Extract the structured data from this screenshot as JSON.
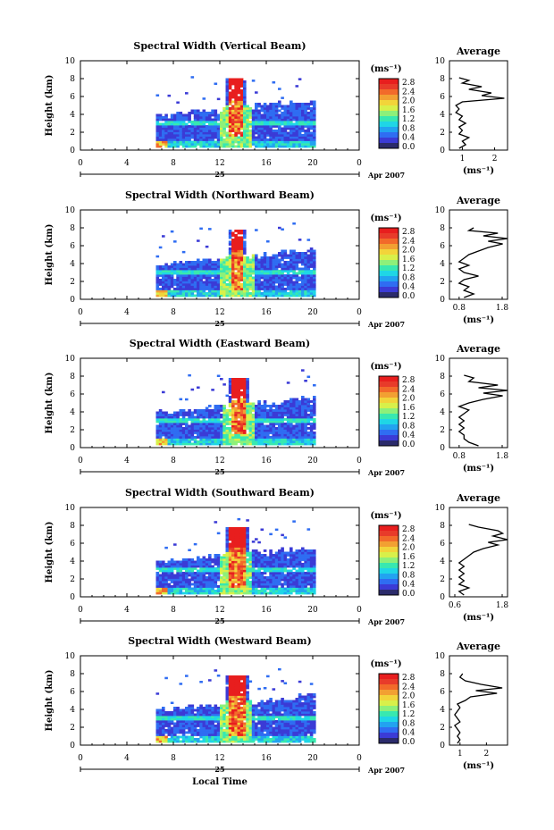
{
  "figure": {
    "x_axis_label": "Local Time",
    "date_label": "Apr 2007",
    "day_label": "25",
    "y_axis_label": "Height (km)",
    "unit_label": "(ms⁻¹)",
    "avg_title": "Average",
    "avg_unit": "(ms⁻¹)"
  },
  "colorbar": {
    "tick_labels": [
      "2.8",
      "2.4",
      "2.0",
      "1.6",
      "1.2",
      "0.8",
      "0.4",
      "0.0"
    ],
    "colors": [
      "#2b2b6b",
      "#3b3bd6",
      "#2f6df2",
      "#22a3f0",
      "#1fd6e6",
      "#38e8b0",
      "#8df07a",
      "#d8f04a",
      "#f2d43a",
      "#f2a032",
      "#f26a2a",
      "#e83b2a",
      "#e81e1e"
    ]
  },
  "chart_data": [
    {
      "type": "heatmap",
      "title": "Spectral Width (Vertical Beam)",
      "xlabel": "Local Time",
      "ylabel": "Height (km)",
      "xlim": [
        0,
        24
      ],
      "ylim": [
        0,
        10
      ],
      "x_ticks": [
        "0",
        "4",
        "8",
        "12",
        "16",
        "20",
        "0"
      ],
      "y_ticks": [
        "0",
        "2",
        "4",
        "6",
        "8",
        "10"
      ],
      "colorbar_range": [
        0.0,
        2.8
      ],
      "data_coverage_hours": [
        6.5,
        20.2
      ],
      "high_width_core": {
        "time_hours": [
          12.7,
          13.8
        ],
        "height_km": [
          1.5,
          8.0
        ]
      },
      "average_profile": {
        "xlim": [
          0.6,
          2.4
        ],
        "x_ticks": [
          "1",
          "2"
        ],
        "points": [
          [
            0.9,
            0.2
          ],
          [
            1.1,
            0.6
          ],
          [
            1.0,
            1.0
          ],
          [
            1.2,
            1.4
          ],
          [
            0.9,
            1.8
          ],
          [
            1.0,
            2.2
          ],
          [
            0.9,
            2.6
          ],
          [
            1.1,
            3.0
          ],
          [
            0.9,
            3.4
          ],
          [
            1.0,
            3.8
          ],
          [
            0.8,
            4.2
          ],
          [
            0.9,
            4.6
          ],
          [
            0.8,
            5.0
          ],
          [
            1.0,
            5.4
          ],
          [
            2.3,
            5.8
          ],
          [
            1.6,
            6.1
          ],
          [
            1.9,
            6.4
          ],
          [
            1.2,
            6.8
          ],
          [
            1.6,
            7.1
          ],
          [
            1.0,
            7.5
          ],
          [
            1.2,
            7.8
          ],
          [
            0.9,
            8.1
          ]
        ]
      }
    },
    {
      "type": "heatmap",
      "title": "Spectral Width (Northward Beam)",
      "xlabel": "Local Time",
      "ylabel": "Height (km)",
      "xlim": [
        0,
        24
      ],
      "ylim": [
        0,
        10
      ],
      "x_ticks": [
        "0",
        "4",
        "8",
        "12",
        "16",
        "20",
        "0"
      ],
      "y_ticks": [
        "0",
        "2",
        "4",
        "6",
        "8",
        "10"
      ],
      "colorbar_range": [
        0.0,
        2.8
      ],
      "data_coverage_hours": [
        6.5,
        20.2
      ],
      "high_width_core": {
        "time_hours": [
          12.8,
          13.9
        ],
        "height_km": [
          1.0,
          7.6
        ]
      },
      "average_profile": {
        "xlim": [
          0.6,
          1.8
        ],
        "x_ticks": [
          "0.8",
          "1.8"
        ],
        "points": [
          [
            0.9,
            0.2
          ],
          [
            1.1,
            0.6
          ],
          [
            0.9,
            1.0
          ],
          [
            1.0,
            1.4
          ],
          [
            0.8,
            1.8
          ],
          [
            0.9,
            2.2
          ],
          [
            1.2,
            2.6
          ],
          [
            0.9,
            3.0
          ],
          [
            0.8,
            3.4
          ],
          [
            1.0,
            3.8
          ],
          [
            0.8,
            4.2
          ],
          [
            0.9,
            4.6
          ],
          [
            1.0,
            5.0
          ],
          [
            1.2,
            5.4
          ],
          [
            1.4,
            5.8
          ],
          [
            1.7,
            6.2
          ],
          [
            1.4,
            6.5
          ],
          [
            1.8,
            6.8
          ],
          [
            1.3,
            7.1
          ],
          [
            1.6,
            7.4
          ],
          [
            1.0,
            7.7
          ],
          [
            1.1,
            8.0
          ]
        ]
      }
    },
    {
      "type": "heatmap",
      "title": "Spectral Width (Eastward Beam)",
      "xlabel": "Local Time",
      "ylabel": "Height (km)",
      "xlim": [
        0,
        24
      ],
      "ylim": [
        0,
        10
      ],
      "x_ticks": [
        "0",
        "4",
        "8",
        "12",
        "16",
        "20",
        "0"
      ],
      "y_ticks": [
        "0",
        "2",
        "4",
        "6",
        "8",
        "10"
      ],
      "colorbar_range": [
        0.0,
        2.8
      ],
      "data_coverage_hours": [
        6.5,
        20.2
      ],
      "high_width_core": {
        "time_hours": [
          12.8,
          14.0
        ],
        "height_km": [
          1.5,
          7.6
        ]
      },
      "average_profile": {
        "xlim": [
          0.6,
          1.8
        ],
        "x_ticks": [
          "0.8",
          "1.8"
        ],
        "points": [
          [
            1.2,
            0.2
          ],
          [
            1.0,
            0.6
          ],
          [
            0.9,
            1.0
          ],
          [
            0.9,
            1.4
          ],
          [
            0.8,
            1.8
          ],
          [
            0.9,
            2.2
          ],
          [
            0.8,
            2.6
          ],
          [
            0.9,
            3.0
          ],
          [
            0.8,
            3.4
          ],
          [
            0.9,
            3.8
          ],
          [
            1.0,
            4.2
          ],
          [
            0.8,
            4.6
          ],
          [
            1.0,
            5.0
          ],
          [
            1.3,
            5.4
          ],
          [
            1.7,
            5.8
          ],
          [
            1.3,
            6.1
          ],
          [
            1.8,
            6.4
          ],
          [
            1.2,
            6.7
          ],
          [
            1.6,
            7.0
          ],
          [
            1.0,
            7.4
          ],
          [
            1.1,
            7.8
          ],
          [
            0.9,
            8.1
          ]
        ]
      }
    },
    {
      "type": "heatmap",
      "title": "Spectral Width (Southward Beam)",
      "xlabel": "Local Time",
      "ylabel": "Height (km)",
      "xlim": [
        0,
        24
      ],
      "ylim": [
        0,
        10
      ],
      "x_ticks": [
        "0",
        "4",
        "8",
        "12",
        "16",
        "20",
        "0"
      ],
      "y_ticks": [
        "0",
        "2",
        "4",
        "6",
        "8",
        "10"
      ],
      "colorbar_range": [
        0.0,
        2.8
      ],
      "data_coverage_hours": [
        6.5,
        20.2
      ],
      "high_width_core": {
        "time_hours": [
          12.6,
          14.1
        ],
        "height_km": [
          1.0,
          7.6
        ]
      },
      "average_profile": {
        "xlim": [
          0.6,
          1.8
        ],
        "x_ticks": [
          "0.6",
          "1.8"
        ],
        "points": [
          [
            0.9,
            0.2
          ],
          [
            0.8,
            0.6
          ],
          [
            1.0,
            1.0
          ],
          [
            0.8,
            1.4
          ],
          [
            0.9,
            1.8
          ],
          [
            0.8,
            2.2
          ],
          [
            0.9,
            2.6
          ],
          [
            0.8,
            3.0
          ],
          [
            0.9,
            3.4
          ],
          [
            0.8,
            3.8
          ],
          [
            0.9,
            4.2
          ],
          [
            1.0,
            4.6
          ],
          [
            1.1,
            5.0
          ],
          [
            1.3,
            5.4
          ],
          [
            1.6,
            5.8
          ],
          [
            1.4,
            6.1
          ],
          [
            1.8,
            6.4
          ],
          [
            1.5,
            6.8
          ],
          [
            1.7,
            7.1
          ],
          [
            1.6,
            7.4
          ],
          [
            1.2,
            7.8
          ],
          [
            1.0,
            8.1
          ]
        ]
      }
    },
    {
      "type": "heatmap",
      "title": "Spectral Width (Westward Beam)",
      "xlabel": "Local Time",
      "ylabel": "Height (km)",
      "xlim": [
        0,
        24
      ],
      "ylim": [
        0,
        10
      ],
      "x_ticks": [
        "0",
        "4",
        "8",
        "12",
        "16",
        "20",
        "0"
      ],
      "y_ticks": [
        "0",
        "2",
        "4",
        "6",
        "8",
        "10"
      ],
      "colorbar_range": [
        0.0,
        2.8
      ],
      "data_coverage_hours": [
        6.5,
        20.2
      ],
      "high_width_core": {
        "time_hours": [
          12.7,
          14.0
        ],
        "height_km": [
          1.0,
          7.8
        ]
      },
      "average_profile": {
        "xlim": [
          0.6,
          2.8
        ],
        "x_ticks": [
          "1",
          "2"
        ],
        "points": [
          [
            0.9,
            0.2
          ],
          [
            1.0,
            0.6
          ],
          [
            0.9,
            1.0
          ],
          [
            1.0,
            1.4
          ],
          [
            0.9,
            1.8
          ],
          [
            0.8,
            2.2
          ],
          [
            1.0,
            2.6
          ],
          [
            0.9,
            3.0
          ],
          [
            0.8,
            3.4
          ],
          [
            0.9,
            3.8
          ],
          [
            1.0,
            4.2
          ],
          [
            0.9,
            4.6
          ],
          [
            1.2,
            5.0
          ],
          [
            1.4,
            5.4
          ],
          [
            2.4,
            5.8
          ],
          [
            1.6,
            6.1
          ],
          [
            2.6,
            6.4
          ],
          [
            1.8,
            6.8
          ],
          [
            1.2,
            7.2
          ],
          [
            1.0,
            7.6
          ],
          [
            1.1,
            8.0
          ]
        ]
      }
    }
  ]
}
